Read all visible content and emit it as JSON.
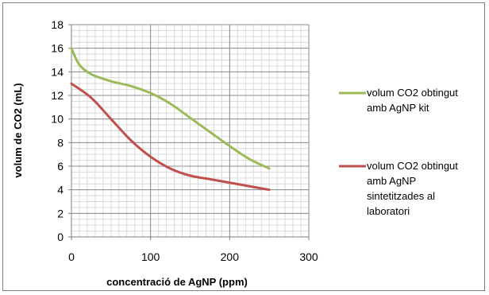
{
  "chart_data": {
    "type": "line",
    "title": "",
    "xlabel": "concentració de  AgNP (ppm)",
    "ylabel": "volum de CO2 (mL)",
    "xlim": [
      0,
      300
    ],
    "ylim": [
      0,
      18
    ],
    "xticks": [
      0,
      100,
      200,
      300
    ],
    "yticks": [
      0,
      2,
      4,
      6,
      8,
      10,
      12,
      14,
      16,
      18
    ],
    "x_minor_step": 10,
    "y_minor_step": 0.5,
    "grid": true,
    "legend_position": "right",
    "series": [
      {
        "name_lines": [
          "volum CO2 obtingut",
          "amb AgNP kit"
        ],
        "color": "#9BBB59",
        "x": [
          0,
          10,
          25,
          50,
          75,
          100,
          125,
          150,
          175,
          200,
          225,
          250
        ],
        "y": [
          16,
          14.6,
          13.8,
          13.2,
          12.8,
          12.2,
          11.3,
          10.1,
          8.9,
          7.7,
          6.6,
          5.8
        ]
      },
      {
        "name_lines": [
          "volum CO2 obtingut",
          "amb AgNP",
          "sintetitzades al",
          "laboratori"
        ],
        "color": "#C0504D",
        "x": [
          0,
          25,
          50,
          75,
          100,
          125,
          150,
          175,
          200,
          225,
          250
        ],
        "y": [
          13,
          11.8,
          10.0,
          8.2,
          6.8,
          5.8,
          5.2,
          4.9,
          4.6,
          4.3,
          4.0
        ]
      }
    ]
  }
}
